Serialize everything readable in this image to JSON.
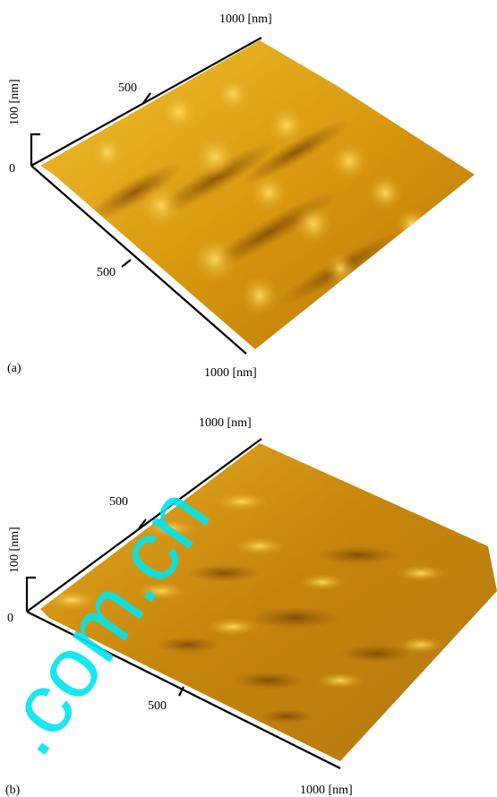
{
  "panels": [
    {
      "label": "(a)",
      "back_axis": {
        "end_label": "1000 [nm]",
        "mid_label": "500"
      },
      "front_axis": {
        "end_label": "1000 [nm]",
        "mid_label": "500"
      },
      "height_axis": {
        "label": "100 [nm]",
        "zero_label": "0"
      }
    },
    {
      "label": "(b)",
      "back_axis": {
        "end_label": "1000 [nm]",
        "mid_label": "500"
      },
      "front_axis": {
        "end_label": "1000 [nm]",
        "mid_label": "500"
      },
      "height_axis": {
        "label": "100 [nm]",
        "zero_label": "0"
      }
    }
  ],
  "watermark": ".com.cn"
}
